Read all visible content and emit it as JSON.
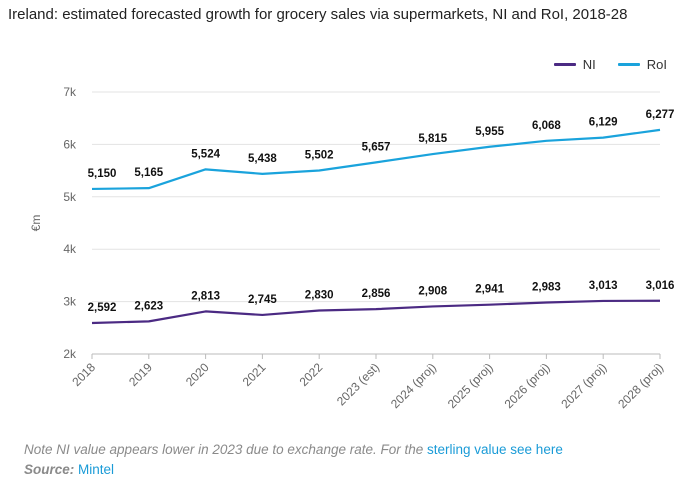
{
  "title": "Ireland: estimated forecasted growth for grocery sales via supermarkets, NI and RoI, 2018-28",
  "chart_data": {
    "type": "line",
    "categories": [
      "2018",
      "2019",
      "2020",
      "2021",
      "2022",
      "2023 (est)",
      "2024 (proj)",
      "2025 (proj)",
      "2026 (proj)",
      "2027 (proj)",
      "2028 (proj)"
    ],
    "series": [
      {
        "name": "NI",
        "color": "#4b2a83",
        "values": [
          2592,
          2623,
          2813,
          2745,
          2830,
          2856,
          2908,
          2941,
          2983,
          3013,
          3016
        ],
        "labels": [
          "2,592",
          "2,623",
          "2,813",
          "2,745",
          "2,830",
          "2,856",
          "2,908",
          "2,941",
          "2,983",
          "3,013",
          "3,016"
        ]
      },
      {
        "name": "RoI",
        "color": "#1aa3dc",
        "values": [
          5150,
          5165,
          5524,
          5438,
          5502,
          5657,
          5815,
          5955,
          6068,
          6129,
          6277
        ],
        "labels": [
          "5,150",
          "5,165",
          "5,524",
          "5,438",
          "5,502",
          "5,657",
          "5,815",
          "5,955",
          "6,068",
          "6,129",
          "6,277"
        ]
      }
    ],
    "yticks": [
      2000,
      3000,
      4000,
      5000,
      6000,
      7000
    ],
    "ytick_labels": [
      "2k",
      "3k",
      "4k",
      "5k",
      "6k",
      "7k"
    ],
    "ylim": [
      2000,
      7000
    ],
    "xlabel": "",
    "ylabel": "€m",
    "legend_position": "top-right",
    "grid": true
  },
  "note": {
    "text": "Note NI value appears lower in 2023 due to exchange rate. For the ",
    "link": "sterling value see here"
  },
  "source": {
    "label": "Source:",
    "link": "Mintel"
  }
}
